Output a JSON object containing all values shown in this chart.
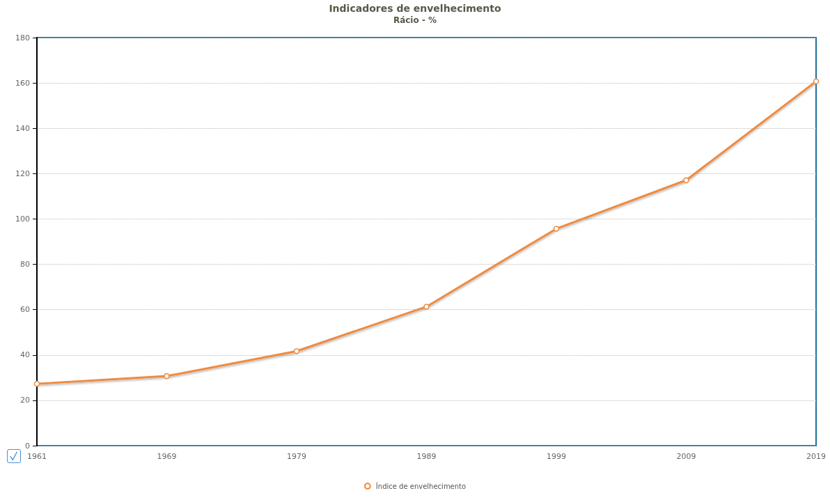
{
  "chart_data": {
    "type": "line",
    "title": "Indicadores de envelhecimento",
    "subtitle": "Rácio - %",
    "categories": [
      "1961",
      "1969",
      "1979",
      "1989",
      "1999",
      "2009",
      "2019"
    ],
    "series": [
      {
        "name": "Índice de envelhecimento",
        "color": "#f08a3c",
        "values": [
          27.3,
          30.7,
          41.7,
          61.3,
          95.7,
          117.1,
          160.7
        ]
      }
    ],
    "ylim": [
      0,
      180
    ],
    "yticks": [
      0,
      20,
      40,
      60,
      80,
      100,
      120,
      140,
      160,
      180
    ],
    "grid": "y",
    "legend": "bottom",
    "marker": "circle",
    "line_style": "solid"
  }
}
